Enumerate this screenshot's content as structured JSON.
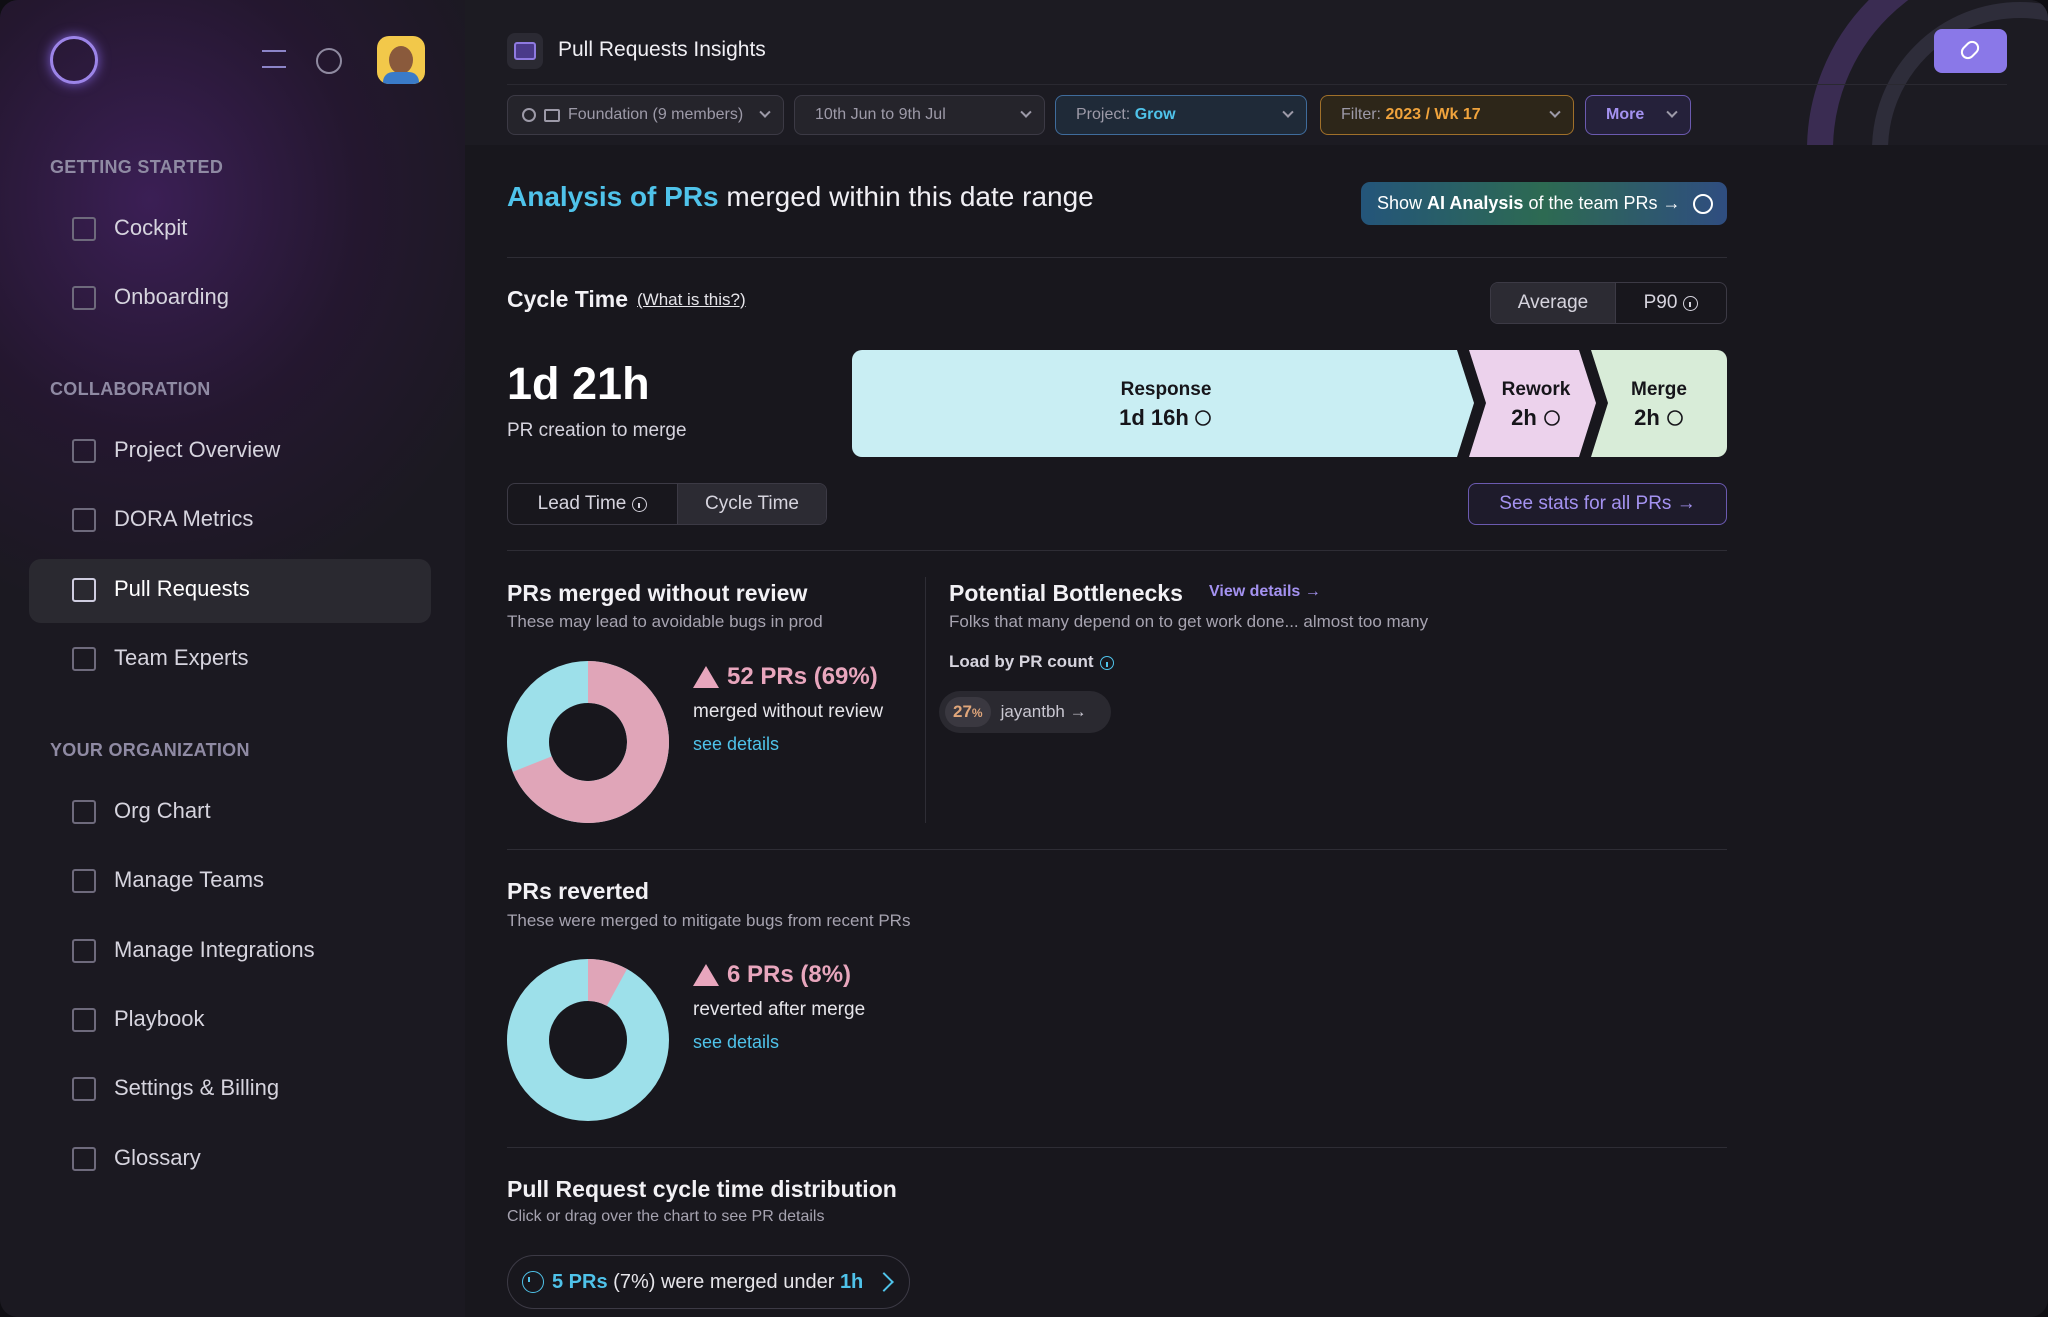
{
  "sidebar": {
    "sections": [
      {
        "title": "GETTING STARTED",
        "items": [
          "Cockpit",
          "Onboarding"
        ]
      },
      {
        "title": "COLLABORATION",
        "items": [
          "Project Overview",
          "DORA Metrics",
          "Pull Requests",
          "Team Experts"
        ]
      },
      {
        "title": "YOUR ORGANIZATION",
        "items": [
          "Org Chart",
          "Manage Teams",
          "Manage Integrations",
          "Playbook",
          "Settings & Billing",
          "Glossary"
        ]
      }
    ]
  },
  "header": {
    "title": "Pull Requests Insights"
  },
  "filters": {
    "team": "Foundation (9 members)",
    "date": "10th Jun to 9th Jul",
    "project_label": "Project:",
    "project": "Grow",
    "filter_label": "Filter:",
    "filter": "2023 / Wk 17",
    "more": "More"
  },
  "analysis": {
    "title_highlight": "Analysis of PRs",
    "title_rest": "merged within this date range",
    "ai_prefix": "Show",
    "ai_bold": "AI Analysis",
    "ai_suffix": "of the team PRs →"
  },
  "cycle_time": {
    "title": "Cycle Time",
    "help": "(What is this?)",
    "toggle": [
      "Average",
      "P90"
    ],
    "total": "1d 21h",
    "total_caption": "PR creation to merge",
    "stages": [
      {
        "name": "Response",
        "value": "1d 16h"
      },
      {
        "name": "Rework",
        "value": "2h"
      },
      {
        "name": "Merge",
        "value": "2h"
      }
    ],
    "mode_toggle": [
      "Lead Time",
      "Cycle Time"
    ],
    "stats_link": "See stats for all PRs →"
  },
  "unreviewed": {
    "title": "PRs merged without review",
    "subtitle": "These may lead to avoidable bugs in prod",
    "share": 69,
    "headline": "52 PRs (69%)",
    "caption": "merged without review",
    "link": "see details"
  },
  "bottlenecks": {
    "title": "Potential Bottlenecks",
    "link": "View details →",
    "subtitle": "Folks that many depend on to get work done... almost too many",
    "load_label": "Load by PR count",
    "people": [
      {
        "percent": "27",
        "unit": "%",
        "name": "jayantbh →"
      }
    ]
  },
  "reverted": {
    "title": "PRs reverted",
    "subtitle": "These were merged to mitigate bugs from recent PRs",
    "share": 8,
    "headline": "6 PRs (8%)",
    "caption": "reverted after merge",
    "link": "see details"
  },
  "distribution": {
    "title": "Pull Request cycle time distribution",
    "subtitle": "Click or drag over the chart to see PR details",
    "note": {
      "count": "5 PRs",
      "text": "(7%) were merged under",
      "threshold": "1h"
    }
  }
}
